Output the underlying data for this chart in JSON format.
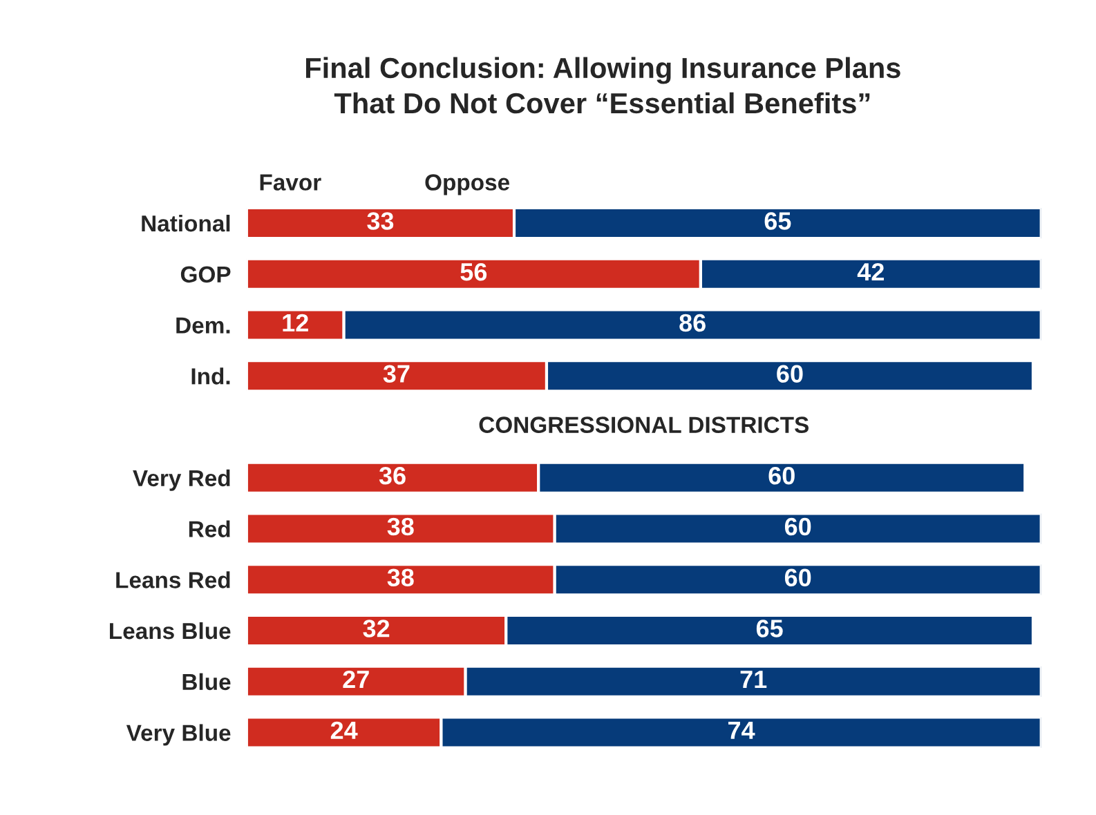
{
  "chart_data": {
    "type": "bar",
    "orientation": "horizontal",
    "stacked": true,
    "data_labels": true,
    "legend": false,
    "grid": false,
    "title": "Final Conclusion: Allowing Insurance Plans\nThat Do Not Cover “Essential Benefits”",
    "categories": [
      "National",
      "GOP",
      "Dem.",
      "Ind.",
      null,
      "Very Red",
      "Red",
      "Leans Red",
      "Leans Blue",
      "Blue",
      "Very Blue"
    ],
    "series": [
      {
        "name": "Favor",
        "color": "#d02c20",
        "values": [
          33,
          56,
          12,
          37,
          null,
          36,
          38,
          38,
          32,
          27,
          24
        ]
      },
      {
        "name": "Oppose",
        "color": "#063b7a",
        "values": [
          65,
          42,
          86,
          60,
          null,
          60,
          60,
          60,
          65,
          71,
          74
        ]
      }
    ],
    "annotations": [
      "CONGRESSIONAL DISTRICTS"
    ]
  }
}
